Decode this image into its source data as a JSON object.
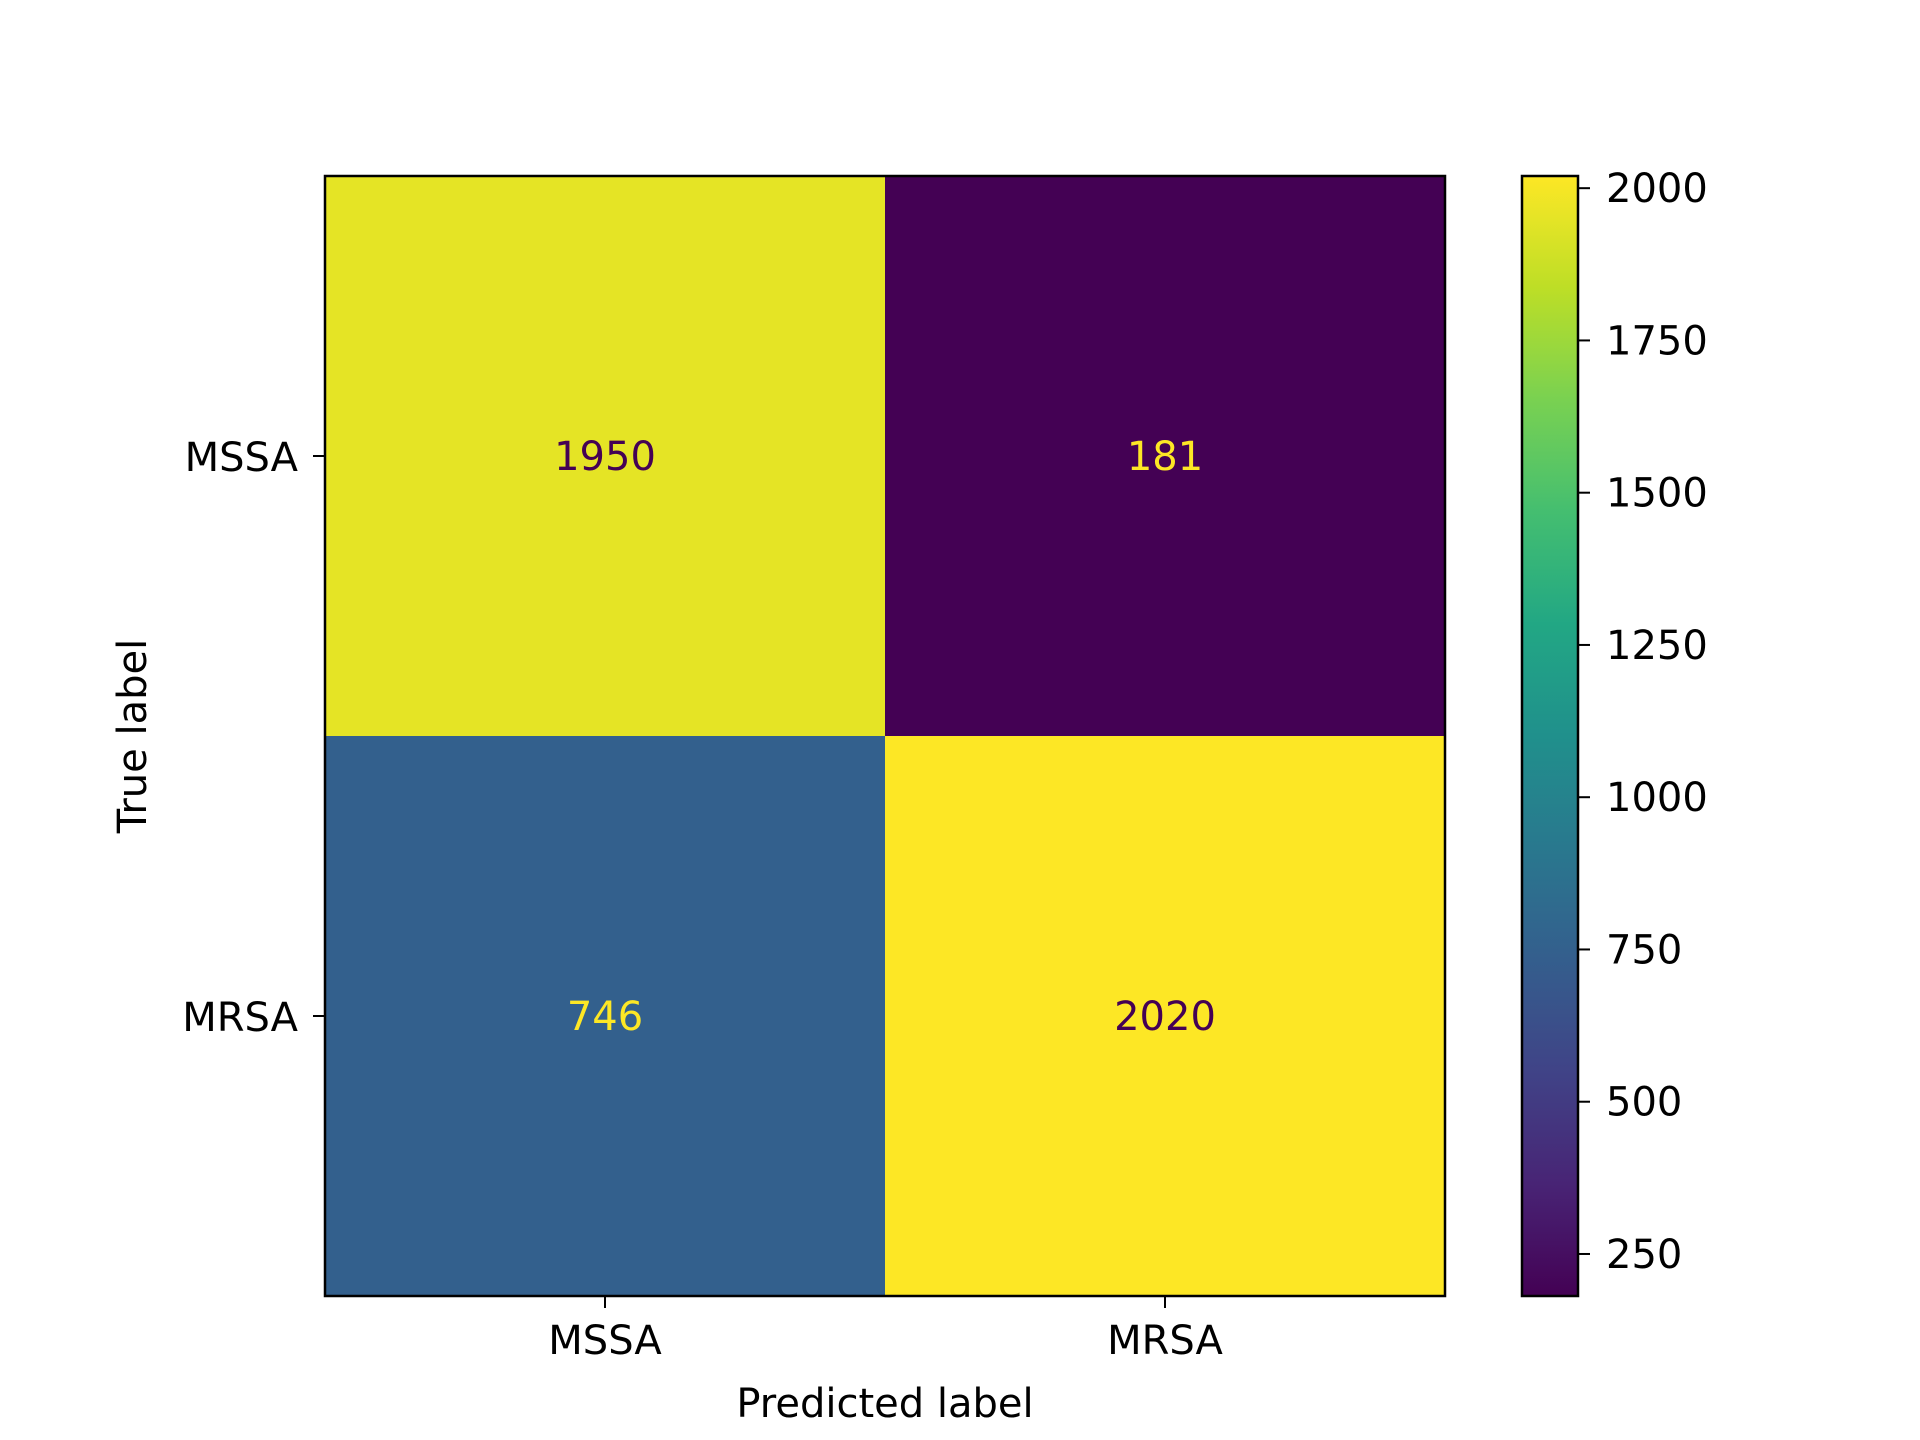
{
  "chart_data": {
    "type": "heatmap",
    "title": "",
    "xlabel": "Predicted label",
    "ylabel": "True label",
    "x_categories": [
      "MSSA",
      "MRSA"
    ],
    "y_categories": [
      "MSSA",
      "MRSA"
    ],
    "values": [
      [
        1950,
        181
      ],
      [
        746,
        2020
      ]
    ],
    "cell_text_colors": [
      [
        "#440154",
        "#fde725"
      ],
      [
        "#fde725",
        "#440154"
      ]
    ],
    "colorbar": {
      "colormap": "viridis",
      "range": [
        181,
        2020
      ],
      "ticks": [
        250,
        500,
        750,
        1000,
        1250,
        1500,
        1750,
        2000
      ],
      "tick_labels": [
        "250",
        "500",
        "750",
        "1000",
        "1250",
        "1500",
        "1750",
        "2000"
      ]
    },
    "grid": false,
    "colors": {
      "low": "#440154",
      "high": "#fde725",
      "axis": "#000000",
      "background": "#ffffff"
    }
  }
}
